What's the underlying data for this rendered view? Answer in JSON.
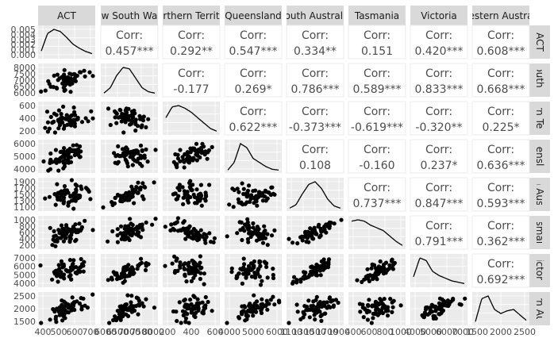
{
  "chart_data": {
    "type": "scatter",
    "layout": "pairs",
    "variables": [
      "ACT",
      "New South Wales",
      "Northern Territory",
      "Queensland",
      "South Australia",
      "Tasmania",
      "Victoria",
      "Western Australia"
    ],
    "column_labels": [
      "ACT",
      "w South Wa",
      "orthern Territo",
      "Queensland",
      "outh Australi",
      "Tasmania",
      "Victoria",
      "estern Austra"
    ],
    "row_labels": [
      "ACT",
      "South W",
      "ern Terr",
      "ueenslan",
      "th Austr",
      "asmani",
      "Victoria",
      "ern Aus"
    ],
    "correlation_label": "Corr:",
    "correlations": [
      [
        "",
        "0.457***",
        "0.292**",
        "0.547***",
        "0.334**",
        "0.151",
        "0.420***",
        "0.608***"
      ],
      [
        "",
        "",
        "-0.177",
        "0.269*",
        "0.786***",
        "0.589***",
        "0.833***",
        "0.668***"
      ],
      [
        "",
        "",
        "",
        "0.622***",
        "-0.373***",
        "-0.619***",
        "-0.320**",
        "0.225*"
      ],
      [
        "",
        "",
        "",
        "",
        "0.108",
        "-0.160",
        "0.237*",
        "0.636***"
      ],
      [
        "",
        "",
        "",
        "",
        "",
        "0.737***",
        "0.847***",
        "0.593***"
      ],
      [
        "",
        "",
        "",
        "",
        "",
        "",
        "0.791***",
        "0.362***"
      ],
      [
        "",
        "",
        "",
        "",
        "",
        "",
        "",
        "0.692***"
      ],
      [
        "",
        "",
        "",
        "",
        "",
        "",
        "",
        ""
      ]
    ],
    "y_ticks": [
      [
        "0.005",
        "0.004",
        "0.003",
        "0.002",
        "0.001",
        "0.000"
      ],
      [
        "8000",
        "7500",
        "7000",
        "6500",
        "6000"
      ],
      [
        "600",
        "400",
        "200"
      ],
      [
        "6000",
        "5000",
        "4000"
      ],
      [
        "1900",
        "1700",
        "1500",
        "1300",
        "1100"
      ],
      [
        "1000",
        "800",
        "600",
        "400",
        "200"
      ],
      [
        "7000",
        "6000",
        "5000",
        "4000"
      ],
      [
        "2500",
        "2000",
        "1500"
      ]
    ],
    "x_ticks": [
      [
        "400",
        "500",
        "600",
        "700"
      ],
      [
        "6000",
        "6500",
        "7000",
        "7500",
        "8000"
      ],
      [
        "200",
        "400",
        "600"
      ],
      [
        "4000",
        "5000",
        "6000"
      ],
      [
        "1100",
        "1300",
        "1500",
        "1700",
        "1900"
      ],
      [
        "400",
        "600",
        "800",
        "1000"
      ],
      [
        "4000",
        "5000",
        "6000",
        "7000"
      ],
      [
        "1500",
        "2000",
        "2500"
      ]
    ],
    "colors": {
      "panel_background": "#ebebeb",
      "strip_background": "#d9d9d9",
      "grid": "#ffffff",
      "points": "#000000",
      "text": "#4d4d4d"
    }
  }
}
